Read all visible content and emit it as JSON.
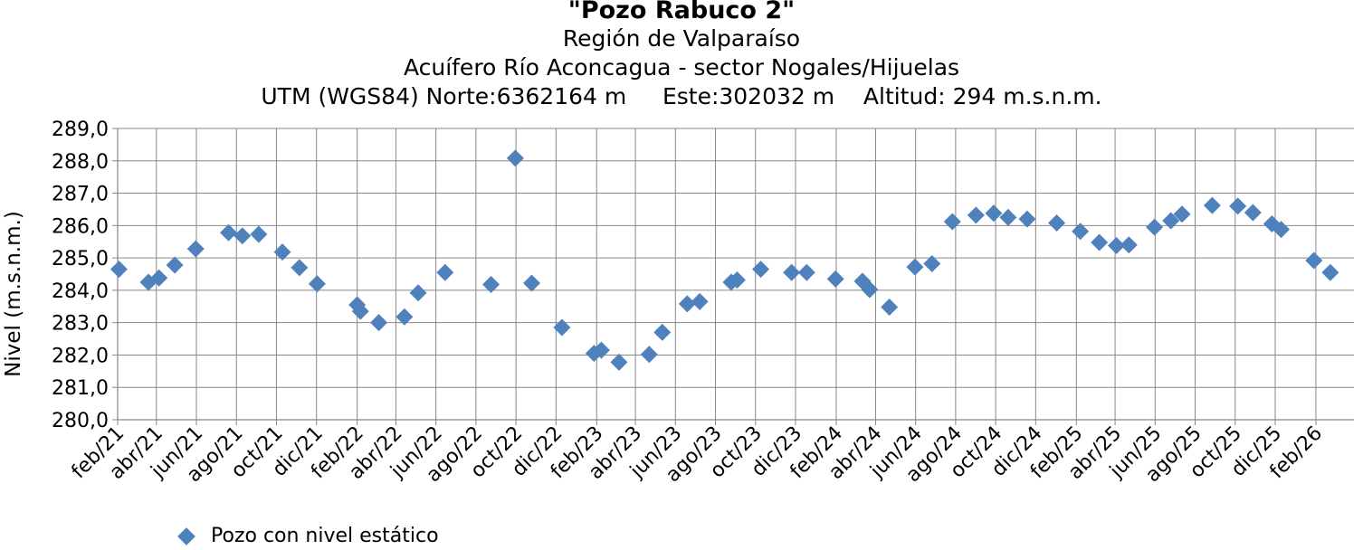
{
  "chart_data": {
    "type": "scatter",
    "title": "\"Pozo Rabuco 2\"",
    "subtitles": [
      "Región de Valparaíso",
      "Acuífero Río Aconcagua - sector Nogales/Hijuelas",
      "UTM (WGS84) Norte:6362164 m     Este:302032 m    Altitud: 294 m.s.n.m."
    ],
    "ylabel": "Nivel (m.s.n.m.)",
    "xlabel": "",
    "ylim": [
      280.0,
      289.0
    ],
    "ytick_step": 1.0,
    "yticks": [
      "280,0",
      "281,0",
      "282,0",
      "283,0",
      "284,0",
      "285,0",
      "286,0",
      "287,0",
      "288,0",
      "289,0"
    ],
    "xlim": [
      "2021-02-01",
      "2026-03-31"
    ],
    "xticks": [
      {
        "date": "2021-02-01",
        "label": "feb/21"
      },
      {
        "date": "2021-04-01",
        "label": "abr/21"
      },
      {
        "date": "2021-06-01",
        "label": "jun/21"
      },
      {
        "date": "2021-08-01",
        "label": "ago/21"
      },
      {
        "date": "2021-10-01",
        "label": "oct/21"
      },
      {
        "date": "2021-12-01",
        "label": "dic/21"
      },
      {
        "date": "2022-02-01",
        "label": "feb/22"
      },
      {
        "date": "2022-04-01",
        "label": "abr/22"
      },
      {
        "date": "2022-06-01",
        "label": "jun/22"
      },
      {
        "date": "2022-08-01",
        "label": "ago/22"
      },
      {
        "date": "2022-10-01",
        "label": "oct/22"
      },
      {
        "date": "2022-12-01",
        "label": "dic/22"
      },
      {
        "date": "2023-02-01",
        "label": "feb/23"
      },
      {
        "date": "2023-04-01",
        "label": "abr/23"
      },
      {
        "date": "2023-06-01",
        "label": "jun/23"
      },
      {
        "date": "2023-08-01",
        "label": "ago/23"
      },
      {
        "date": "2023-10-01",
        "label": "oct/23"
      },
      {
        "date": "2023-12-01",
        "label": "dic/23"
      },
      {
        "date": "2024-02-01",
        "label": "feb/24"
      },
      {
        "date": "2024-04-01",
        "label": "abr/24"
      },
      {
        "date": "2024-06-01",
        "label": "jun/24"
      },
      {
        "date": "2024-08-01",
        "label": "ago/24"
      },
      {
        "date": "2024-10-01",
        "label": "oct/24"
      },
      {
        "date": "2024-12-01",
        "label": "dic/24"
      },
      {
        "date": "2025-02-01",
        "label": "feb/25"
      },
      {
        "date": "2025-04-01",
        "label": "abr/25"
      },
      {
        "date": "2025-06-01",
        "label": "jun/25"
      },
      {
        "date": "2025-08-01",
        "label": "ago/25"
      },
      {
        "date": "2025-10-01",
        "label": "oct/25"
      },
      {
        "date": "2025-12-01",
        "label": "dic/25"
      },
      {
        "date": "2026-02-01",
        "label": "feb/26"
      }
    ],
    "grid": true,
    "legend_position": "bottom-left",
    "series": [
      {
        "name": "Pozo con nivel estático",
        "color": "#4f81bd",
        "marker": "diamond",
        "points": [
          {
            "x": "2021-02-03",
            "y": 284.65
          },
          {
            "x": "2021-03-20",
            "y": 284.25
          },
          {
            "x": "2021-04-05",
            "y": 284.38
          },
          {
            "x": "2021-04-29",
            "y": 284.78
          },
          {
            "x": "2021-05-31",
            "y": 285.28
          },
          {
            "x": "2021-07-20",
            "y": 285.78
          },
          {
            "x": "2021-08-10",
            "y": 285.68
          },
          {
            "x": "2021-09-04",
            "y": 285.73
          },
          {
            "x": "2021-10-10",
            "y": 285.18
          },
          {
            "x": "2021-11-05",
            "y": 284.7
          },
          {
            "x": "2021-12-02",
            "y": 284.2
          },
          {
            "x": "2022-02-01",
            "y": 283.55
          },
          {
            "x": "2022-02-06",
            "y": 283.35
          },
          {
            "x": "2022-03-06",
            "y": 283.0
          },
          {
            "x": "2022-04-14",
            "y": 283.18
          },
          {
            "x": "2022-05-05",
            "y": 283.92
          },
          {
            "x": "2022-06-15",
            "y": 284.55
          },
          {
            "x": "2022-08-24",
            "y": 284.18
          },
          {
            "x": "2022-09-30",
            "y": 288.08
          },
          {
            "x": "2022-10-25",
            "y": 284.22
          },
          {
            "x": "2022-12-10",
            "y": 282.85
          },
          {
            "x": "2023-01-28",
            "y": 282.05
          },
          {
            "x": "2023-02-08",
            "y": 282.15
          },
          {
            "x": "2023-03-07",
            "y": 281.78
          },
          {
            "x": "2023-04-22",
            "y": 282.02
          },
          {
            "x": "2023-05-12",
            "y": 282.7
          },
          {
            "x": "2023-06-19",
            "y": 283.58
          },
          {
            "x": "2023-07-08",
            "y": 283.65
          },
          {
            "x": "2023-08-25",
            "y": 284.25
          },
          {
            "x": "2023-09-03",
            "y": 284.32
          },
          {
            "x": "2023-10-09",
            "y": 284.65
          },
          {
            "x": "2023-11-25",
            "y": 284.55
          },
          {
            "x": "2023-12-18",
            "y": 284.55
          },
          {
            "x": "2024-01-31",
            "y": 284.35
          },
          {
            "x": "2024-03-12",
            "y": 284.28
          },
          {
            "x": "2024-03-23",
            "y": 284.02
          },
          {
            "x": "2024-04-22",
            "y": 283.48
          },
          {
            "x": "2024-05-31",
            "y": 284.72
          },
          {
            "x": "2024-06-26",
            "y": 284.82
          },
          {
            "x": "2024-07-27",
            "y": 286.12
          },
          {
            "x": "2024-09-01",
            "y": 286.32
          },
          {
            "x": "2024-09-28",
            "y": 286.38
          },
          {
            "x": "2024-10-20",
            "y": 286.25
          },
          {
            "x": "2024-11-18",
            "y": 286.2
          },
          {
            "x": "2025-01-02",
            "y": 286.08
          },
          {
            "x": "2025-02-07",
            "y": 285.82
          },
          {
            "x": "2025-03-08",
            "y": 285.48
          },
          {
            "x": "2025-04-03",
            "y": 285.38
          },
          {
            "x": "2025-04-22",
            "y": 285.4
          },
          {
            "x": "2025-05-31",
            "y": 285.95
          },
          {
            "x": "2025-06-25",
            "y": 286.15
          },
          {
            "x": "2025-07-12",
            "y": 286.35
          },
          {
            "x": "2025-08-27",
            "y": 286.62
          },
          {
            "x": "2025-10-05",
            "y": 286.6
          },
          {
            "x": "2025-10-28",
            "y": 286.4
          },
          {
            "x": "2025-11-26",
            "y": 286.05
          },
          {
            "x": "2025-12-10",
            "y": 285.88
          },
          {
            "x": "2026-01-29",
            "y": 284.92
          },
          {
            "x": "2026-02-23",
            "y": 284.55
          }
        ]
      }
    ]
  }
}
